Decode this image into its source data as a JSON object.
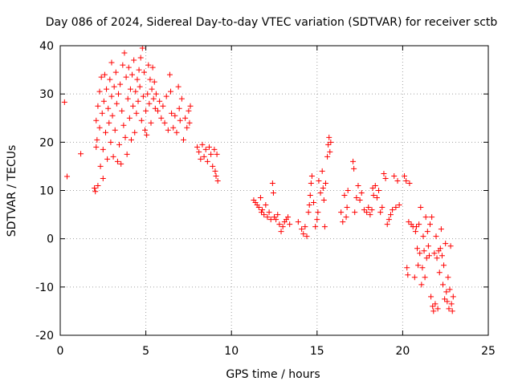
{
  "chart_data": {
    "type": "scatter",
    "title": "Day 086 of 2024, Sidereal Day-to-day VTEC variation (SDTVAR) for receiver sctb",
    "xlabel": "GPS time / hours",
    "ylabel": "SDTVAR / TECUs",
    "xlim": [
      0,
      25
    ],
    "ylim": [
      -20,
      40
    ],
    "xticks": [
      "0",
      "5",
      "10",
      "15",
      "20",
      "25"
    ],
    "yticks": [
      "-20",
      "-10",
      "0",
      "10",
      "20",
      "30",
      "40"
    ],
    "grid": true,
    "marker": "+",
    "color": "#ff0000",
    "series": [
      {
        "name": "SDTVAR",
        "points": [
          [
            0.25,
            28.3
          ],
          [
            0.4,
            12.9
          ],
          [
            1.2,
            17.6
          ],
          [
            2.0,
            10.5
          ],
          [
            2.05,
            9.8
          ],
          [
            2.1,
            19.0
          ],
          [
            2.1,
            24.5
          ],
          [
            2.15,
            20.5
          ],
          [
            2.2,
            27.5
          ],
          [
            2.2,
            11.0
          ],
          [
            2.3,
            23.0
          ],
          [
            2.3,
            30.5
          ],
          [
            2.35,
            15.0
          ],
          [
            2.4,
            33.5
          ],
          [
            2.45,
            26.0
          ],
          [
            2.5,
            18.5
          ],
          [
            2.5,
            12.5
          ],
          [
            2.55,
            28.5
          ],
          [
            2.6,
            34.0
          ],
          [
            2.65,
            22.0
          ],
          [
            2.7,
            31.0
          ],
          [
            2.75,
            16.5
          ],
          [
            2.8,
            27.0
          ],
          [
            2.85,
            24.0
          ],
          [
            2.9,
            33.0
          ],
          [
            2.95,
            20.0
          ],
          [
            3.0,
            29.5
          ],
          [
            3.0,
            36.5
          ],
          [
            3.05,
            25.5
          ],
          [
            3.1,
            17.0
          ],
          [
            3.15,
            31.5
          ],
          [
            3.2,
            22.5
          ],
          [
            3.25,
            34.5
          ],
          [
            3.3,
            28.0
          ],
          [
            3.35,
            16.0
          ],
          [
            3.4,
            30.0
          ],
          [
            3.45,
            19.5
          ],
          [
            3.5,
            32.0
          ],
          [
            3.55,
            15.5
          ],
          [
            3.6,
            26.5
          ],
          [
            3.65,
            36.0
          ],
          [
            3.7,
            23.5
          ],
          [
            3.75,
            38.5
          ],
          [
            3.8,
            21.0
          ],
          [
            3.85,
            33.5
          ],
          [
            3.9,
            17.5
          ],
          [
            3.95,
            29.0
          ],
          [
            4.0,
            35.5
          ],
          [
            4.05,
            25.0
          ],
          [
            4.1,
            31.0
          ],
          [
            4.15,
            20.5
          ],
          [
            4.2,
            34.0
          ],
          [
            4.25,
            27.5
          ],
          [
            4.3,
            37.0
          ],
          [
            4.35,
            22.0
          ],
          [
            4.4,
            30.5
          ],
          [
            4.45,
            26.0
          ],
          [
            4.5,
            33.0
          ],
          [
            4.55,
            28.5
          ],
          [
            4.6,
            35.0
          ],
          [
            4.65,
            31.5
          ],
          [
            4.7,
            37.5
          ],
          [
            4.75,
            24.5
          ],
          [
            4.8,
            39.5
          ],
          [
            4.85,
            29.5
          ],
          [
            4.9,
            34.5
          ],
          [
            4.95,
            22.5
          ],
          [
            5.0,
            26.5
          ],
          [
            5.05,
            21.5
          ],
          [
            5.1,
            30.0
          ],
          [
            5.15,
            36.0
          ],
          [
            5.2,
            28.0
          ],
          [
            5.25,
            33.0
          ],
          [
            5.3,
            24.0
          ],
          [
            5.35,
            31.0
          ],
          [
            5.4,
            35.5
          ],
          [
            5.45,
            29.0
          ],
          [
            5.5,
            32.5
          ],
          [
            5.55,
            27.0
          ],
          [
            5.6,
            30.0
          ],
          [
            5.7,
            26.5
          ],
          [
            5.8,
            28.5
          ],
          [
            5.9,
            25.0
          ],
          [
            6.0,
            27.5
          ],
          [
            6.1,
            24.0
          ],
          [
            6.2,
            29.5
          ],
          [
            6.3,
            22.5
          ],
          [
            6.4,
            34.0
          ],
          [
            6.45,
            30.5
          ],
          [
            6.5,
            26.0
          ],
          [
            6.6,
            23.0
          ],
          [
            6.7,
            25.5
          ],
          [
            6.8,
            22.0
          ],
          [
            6.9,
            31.5
          ],
          [
            6.95,
            27.0
          ],
          [
            7.0,
            24.5
          ],
          [
            7.1,
            29.0
          ],
          [
            7.2,
            20.5
          ],
          [
            7.3,
            25.0
          ],
          [
            7.4,
            23.0
          ],
          [
            7.5,
            26.5
          ],
          [
            7.55,
            24.0
          ],
          [
            7.6,
            27.5
          ],
          [
            8.0,
            19.0
          ],
          [
            8.1,
            18.0
          ],
          [
            8.2,
            16.5
          ],
          [
            8.3,
            19.5
          ],
          [
            8.4,
            17.0
          ],
          [
            8.5,
            18.5
          ],
          [
            8.6,
            16.0
          ],
          [
            8.7,
            19.0
          ],
          [
            8.8,
            17.5
          ],
          [
            8.9,
            15.0
          ],
          [
            9.0,
            18.5
          ],
          [
            9.05,
            14.0
          ],
          [
            9.1,
            13.0
          ],
          [
            9.15,
            17.5
          ],
          [
            9.2,
            12.0
          ],
          [
            11.3,
            8.0
          ],
          [
            11.4,
            7.5
          ],
          [
            11.5,
            7.0
          ],
          [
            11.6,
            6.5
          ],
          [
            11.7,
            8.5
          ],
          [
            11.75,
            5.5
          ],
          [
            11.8,
            6.0
          ],
          [
            11.9,
            5.0
          ],
          [
            12.0,
            7.0
          ],
          [
            12.1,
            4.5
          ],
          [
            12.2,
            5.5
          ],
          [
            12.3,
            4.0
          ],
          [
            12.4,
            11.5
          ],
          [
            12.45,
            9.5
          ],
          [
            12.5,
            4.5
          ],
          [
            12.6,
            4.0
          ],
          [
            12.7,
            5.0
          ],
          [
            12.8,
            3.0
          ],
          [
            12.9,
            1.5
          ],
          [
            13.0,
            2.5
          ],
          [
            13.1,
            3.5
          ],
          [
            13.2,
            4.0
          ],
          [
            13.3,
            4.5
          ],
          [
            13.4,
            3.0
          ],
          [
            13.9,
            3.5
          ],
          [
            14.1,
            2.0
          ],
          [
            14.2,
            1.0
          ],
          [
            14.3,
            2.5
          ],
          [
            14.4,
            0.5
          ],
          [
            14.5,
            5.5
          ],
          [
            14.55,
            7.0
          ],
          [
            14.6,
            9.0
          ],
          [
            14.65,
            11.5
          ],
          [
            14.7,
            13.0
          ],
          [
            14.8,
            7.5
          ],
          [
            14.9,
            2.5
          ],
          [
            15.0,
            4.0
          ],
          [
            15.05,
            5.5
          ],
          [
            15.1,
            12.0
          ],
          [
            15.2,
            9.5
          ],
          [
            15.3,
            14.0
          ],
          [
            15.35,
            10.5
          ],
          [
            15.4,
            8.0
          ],
          [
            15.45,
            2.5
          ],
          [
            15.5,
            11.5
          ],
          [
            15.6,
            17.0
          ],
          [
            15.65,
            19.5
          ],
          [
            15.7,
            21.0
          ],
          [
            15.75,
            18.0
          ],
          [
            15.8,
            20.0
          ],
          [
            16.4,
            5.5
          ],
          [
            16.5,
            3.5
          ],
          [
            16.6,
            9.0
          ],
          [
            16.7,
            4.5
          ],
          [
            16.75,
            6.5
          ],
          [
            16.8,
            10.0
          ],
          [
            17.1,
            16.0
          ],
          [
            17.15,
            14.5
          ],
          [
            17.2,
            5.5
          ],
          [
            17.3,
            8.5
          ],
          [
            17.4,
            11.0
          ],
          [
            17.5,
            8.0
          ],
          [
            17.6,
            9.5
          ],
          [
            17.75,
            6.0
          ],
          [
            17.9,
            5.5
          ],
          [
            18.0,
            6.5
          ],
          [
            18.1,
            5.0
          ],
          [
            18.2,
            6.0
          ],
          [
            18.25,
            10.5
          ],
          [
            18.3,
            9.0
          ],
          [
            18.4,
            11.0
          ],
          [
            18.5,
            8.5
          ],
          [
            18.6,
            10.0
          ],
          [
            18.7,
            5.5
          ],
          [
            18.8,
            6.5
          ],
          [
            18.9,
            13.5
          ],
          [
            19.0,
            12.5
          ],
          [
            19.1,
            3.0
          ],
          [
            19.2,
            4.0
          ],
          [
            19.3,
            5.0
          ],
          [
            19.4,
            6.0
          ],
          [
            19.5,
            13.0
          ],
          [
            19.6,
            6.5
          ],
          [
            19.7,
            12.0
          ],
          [
            19.8,
            7.0
          ],
          [
            20.1,
            13.0
          ],
          [
            20.2,
            12.0
          ],
          [
            20.25,
            -6.0
          ],
          [
            20.3,
            -7.5
          ],
          [
            20.35,
            3.5
          ],
          [
            20.4,
            11.5
          ],
          [
            20.5,
            3.0
          ],
          [
            20.6,
            2.5
          ],
          [
            20.7,
            -8.0
          ],
          [
            20.75,
            1.5
          ],
          [
            20.8,
            2.5
          ],
          [
            20.85,
            -2.0
          ],
          [
            20.9,
            -5.5
          ],
          [
            20.95,
            3.0
          ],
          [
            21.0,
            -3.0
          ],
          [
            21.05,
            6.5
          ],
          [
            21.1,
            -9.5
          ],
          [
            21.15,
            -6.0
          ],
          [
            21.2,
            0.5
          ],
          [
            21.25,
            -2.5
          ],
          [
            21.3,
            -8.0
          ],
          [
            21.35,
            4.5
          ],
          [
            21.4,
            -4.0
          ],
          [
            21.45,
            1.5
          ],
          [
            21.5,
            -1.5
          ],
          [
            21.55,
            -3.5
          ],
          [
            21.6,
            3.0
          ],
          [
            21.65,
            -12.0
          ],
          [
            21.7,
            4.5
          ],
          [
            21.75,
            -14.0
          ],
          [
            21.8,
            -15.0
          ],
          [
            21.85,
            -3.0
          ],
          [
            21.9,
            -13.5
          ],
          [
            21.95,
            0.5
          ],
          [
            22.0,
            -4.0
          ],
          [
            22.05,
            -14.5
          ],
          [
            22.1,
            -2.5
          ],
          [
            22.15,
            -7.0
          ],
          [
            22.2,
            -2.0
          ],
          [
            22.25,
            2.0
          ],
          [
            22.3,
            -3.5
          ],
          [
            22.35,
            -9.5
          ],
          [
            22.4,
            -5.5
          ],
          [
            22.45,
            -12.5
          ],
          [
            22.5,
            -1.0
          ],
          [
            22.55,
            -11.0
          ],
          [
            22.6,
            -13.0
          ],
          [
            22.65,
            -8.0
          ],
          [
            22.7,
            -14.5
          ],
          [
            22.75,
            -10.5
          ],
          [
            22.8,
            -1.5
          ],
          [
            22.85,
            -13.5
          ],
          [
            22.9,
            -15.0
          ],
          [
            22.95,
            -12.0
          ]
        ]
      }
    ]
  }
}
